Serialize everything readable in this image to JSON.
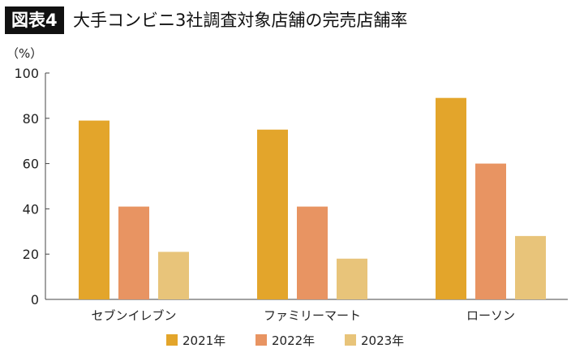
{
  "header": {
    "badge": "図表4",
    "title": "大手コンビニ3社調査対象店舗の完売店舗率"
  },
  "chart_data": {
    "type": "bar",
    "title": "大手コンビニ3社調査対象店舗の完売店舗率",
    "ylabel": "（%）",
    "ylim": [
      0,
      100
    ],
    "yticks": [
      0,
      20,
      40,
      60,
      80,
      100
    ],
    "categories": [
      "セブンイレブン",
      "ファミリーマート",
      "ローソン"
    ],
    "series": [
      {
        "name": "2021年",
        "values": [
          79,
          75,
          89
        ],
        "color": "#e3a52b"
      },
      {
        "name": "2022年",
        "values": [
          41,
          41,
          60
        ],
        "color": "#e89462"
      },
      {
        "name": "2023年",
        "values": [
          21,
          18,
          28
        ],
        "color": "#e8c47a"
      }
    ],
    "legend": "bottom",
    "grid": false
  }
}
